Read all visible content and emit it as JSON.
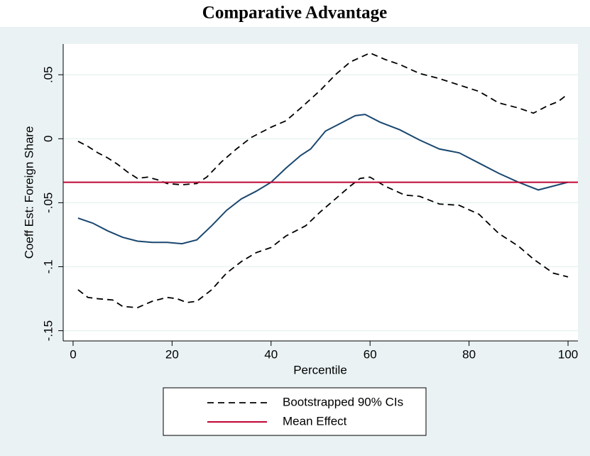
{
  "chart_data": {
    "type": "line",
    "title": "Comparative Advantage",
    "x_label": "Percentile",
    "y_label": "Coeff Est: Foreign Share",
    "xlim": [
      -2,
      102
    ],
    "xticks": [
      0,
      20,
      40,
      60,
      80,
      100
    ],
    "ylim": [
      -0.158,
      0.074
    ],
    "yticks": [
      {
        "value": 0.05,
        "label": ".05"
      },
      0,
      {
        "value": -0.05,
        "label": "-.05"
      },
      {
        "value": -0.1,
        "label": "-.1"
      },
      {
        "value": -0.15,
        "label": "-.15"
      }
    ],
    "grid": true,
    "series": [
      {
        "name": "Bootstrapped 90% CIs",
        "color": "#000000",
        "style": "dashed",
        "x": [
          1,
          3,
          5,
          7,
          9,
          11,
          13,
          15,
          17,
          19,
          22,
          25,
          27,
          30,
          33,
          36,
          40,
          43,
          46,
          50,
          53,
          56,
          60,
          63,
          66,
          70,
          74,
          78,
          82,
          86,
          90,
          93,
          96,
          98,
          100
        ],
        "values": [
          -0.002,
          -0.006,
          -0.011,
          -0.015,
          -0.02,
          -0.026,
          -0.031,
          -0.03,
          -0.032,
          -0.035,
          -0.036,
          -0.035,
          -0.03,
          -0.018,
          -0.008,
          0.001,
          0.009,
          0.014,
          0.024,
          0.038,
          0.05,
          0.06,
          0.067,
          0.062,
          0.058,
          0.051,
          0.047,
          0.042,
          0.037,
          0.028,
          0.024,
          0.02,
          0.026,
          0.029,
          0.035
        ]
      },
      {
        "color": "#000000",
        "style": "dashed",
        "x": [
          1,
          3,
          5,
          8,
          10,
          13,
          16,
          19,
          21,
          23,
          25,
          28,
          31,
          34,
          37,
          40,
          43,
          47,
          50,
          53,
          56,
          58,
          60,
          63,
          67,
          70,
          74,
          78,
          82,
          86,
          90,
          93,
          97,
          100
        ],
        "values": [
          -0.118,
          -0.124,
          -0.125,
          -0.126,
          -0.131,
          -0.132,
          -0.127,
          -0.124,
          -0.125,
          -0.128,
          -0.127,
          -0.118,
          -0.105,
          -0.096,
          -0.089,
          -0.085,
          -0.076,
          -0.068,
          -0.057,
          -0.047,
          -0.037,
          -0.031,
          -0.03,
          -0.037,
          -0.044,
          -0.045,
          -0.051,
          -0.052,
          -0.059,
          -0.074,
          -0.084,
          -0.094,
          -0.105,
          -0.108
        ]
      },
      {
        "color": "#1a476f",
        "style": "solid",
        "x": [
          1,
          4,
          7,
          10,
          13,
          16,
          19,
          22,
          25,
          28,
          31,
          34,
          37,
          40,
          43,
          46,
          48,
          51,
          54,
          57,
          59,
          62,
          66,
          70,
          74,
          78,
          82,
          86,
          90,
          94,
          97,
          100
        ],
        "values": [
          -0.062,
          -0.066,
          -0.072,
          -0.077,
          -0.08,
          -0.081,
          -0.081,
          -0.082,
          -0.079,
          -0.068,
          -0.056,
          -0.047,
          -0.041,
          -0.034,
          -0.023,
          -0.013,
          -0.008,
          0.006,
          0.012,
          0.018,
          0.019,
          0.013,
          0.007,
          -0.001,
          -0.008,
          -0.011,
          -0.019,
          -0.027,
          -0.034,
          -0.04,
          -0.037,
          -0.034
        ]
      }
    ],
    "hlines": [
      {
        "name": "Mean Effect",
        "color": "#c10534",
        "value": -0.034
      }
    ]
  }
}
